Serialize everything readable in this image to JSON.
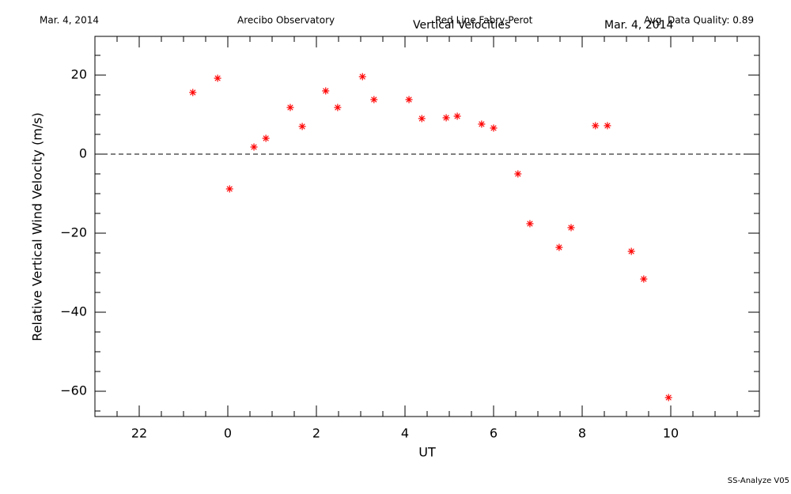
{
  "chart_data": {
    "type": "scatter",
    "date_left": "Mar. 4, 2014",
    "observatory": "Arecibo Observatory",
    "instrument": "Red Line Fabry-Perot",
    "quality": "Avg. Data Quality: 0.89",
    "title": "Vertical Velocities",
    "date_title": "Mar. 4, 2014",
    "footer": "SS-Analyze V05",
    "xlabel": "UT",
    "ylabel": "Relative Vertical Wind Velocity (m/s)",
    "xlim": [
      -3,
      12
    ],
    "ylim": [
      -66.4,
      29.8
    ],
    "xticks": [
      {
        "value": -2,
        "label": "22"
      },
      0,
      2,
      4,
      6,
      8,
      10
    ],
    "yticks": [
      {
        "value": -60,
        "label": "−60"
      },
      {
        "value": -40,
        "label": "−40"
      },
      {
        "value": -20,
        "label": "−20"
      },
      0,
      20
    ],
    "minor_divisions": 4,
    "zero_line": true,
    "color": "#ff0000",
    "x": [
      -0.79,
      -0.23,
      0.04,
      0.59,
      0.86,
      1.41,
      1.68,
      2.21,
      2.48,
      3.04,
      3.3,
      4.09,
      4.38,
      4.93,
      5.18,
      5.73,
      6.0,
      6.55,
      6.82,
      7.48,
      7.75,
      8.3,
      8.57,
      9.11,
      9.39,
      9.95
    ],
    "values": [
      15.6,
      19.2,
      -8.8,
      1.8,
      4.0,
      11.8,
      7.0,
      16.0,
      11.8,
      19.6,
      13.8,
      13.8,
      9.0,
      9.2,
      9.6,
      7.6,
      6.6,
      -5.0,
      -17.6,
      -23.6,
      -18.6,
      7.2,
      7.2,
      -24.6,
      -31.6,
      -61.6
    ]
  }
}
